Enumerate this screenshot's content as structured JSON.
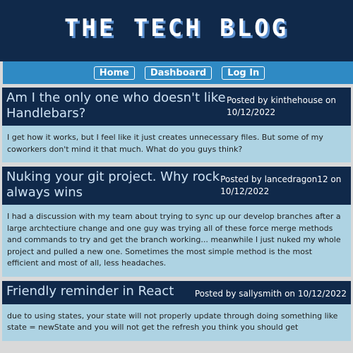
{
  "header": {
    "title": "THE TECH BLOG"
  },
  "nav": {
    "home": "Home",
    "dashboard": "Dashboard",
    "login": "Log In"
  },
  "posts": [
    {
      "title": "Am I the only one who doesn't like Handlebars?",
      "meta": "Posted by kinthehouse on 10/12/2022",
      "body": "I get how it works, but I feel like it just creates unnecessary files. But some of my coworkers don't mind it that much. What do you guys think?"
    },
    {
      "title": "Nuking your git project. Why rock always wins",
      "meta": "Posted by lancedragon12 on 10/12/2022",
      "body": "I had a discussion with my team about trying to sync up our develop branches after a large archtectiure change and one guy was trying all of these force merge methods and commands to try and get the branch working... meanwhile I just nuked my whole project and pulled a new one. Sometimes the most simple method is the most efficient and most of all, less headaches."
    },
    {
      "title": "Friendly reminder in React",
      "meta": "Posted by sallysmith on 10/12/2022",
      "body": "due to using states, your state will not properly update through doing something like state = newState and you will not get the refresh you think you should get"
    }
  ]
}
